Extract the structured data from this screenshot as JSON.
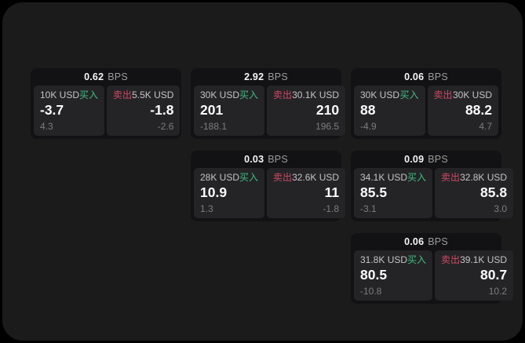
{
  "labels": {
    "bps_unit": "BPS",
    "buy": "买入",
    "sell": "卖出"
  },
  "colors": {
    "page_bg": "#1b1b1c",
    "card_bg": "#121214",
    "panel_bg": "#242427",
    "buy_accent": "#3fbd7c",
    "sell_accent": "#cf4a64"
  },
  "cards": [
    {
      "bps": "0.62",
      "buy": {
        "notional": "10K USD",
        "price": "-3.7",
        "sub": "4.3"
      },
      "sell": {
        "notional": "5.5K USD",
        "price": "-1.8",
        "sub": "-2.6"
      }
    },
    {
      "bps": "2.92",
      "buy": {
        "notional": "30K USD",
        "price": "201",
        "sub": "-188.1"
      },
      "sell": {
        "notional": "30.1K USD",
        "price": "210",
        "sub": "196.5"
      }
    },
    {
      "bps": "0.06",
      "buy": {
        "notional": "30K USD",
        "price": "88",
        "sub": "-4.9"
      },
      "sell": {
        "notional": "30K USD",
        "price": "88.2",
        "sub": "4.7"
      }
    },
    {
      "bps": "0.03",
      "buy": {
        "notional": "28K USD",
        "price": "10.9",
        "sub": "1.3"
      },
      "sell": {
        "notional": "32.6K USD",
        "price": "11",
        "sub": "-1.8"
      }
    },
    {
      "bps": "0.09",
      "buy": {
        "notional": "34.1K USD",
        "price": "85.5",
        "sub": "-3.1"
      },
      "sell": {
        "notional": "32.8K USD",
        "price": "85.8",
        "sub": "3.0"
      }
    },
    {
      "bps": "0.06",
      "buy": {
        "notional": "31.8K USD",
        "price": "80.5",
        "sub": "-10.8"
      },
      "sell": {
        "notional": "39.1K USD",
        "price": "80.7",
        "sub": "10.2"
      }
    }
  ]
}
